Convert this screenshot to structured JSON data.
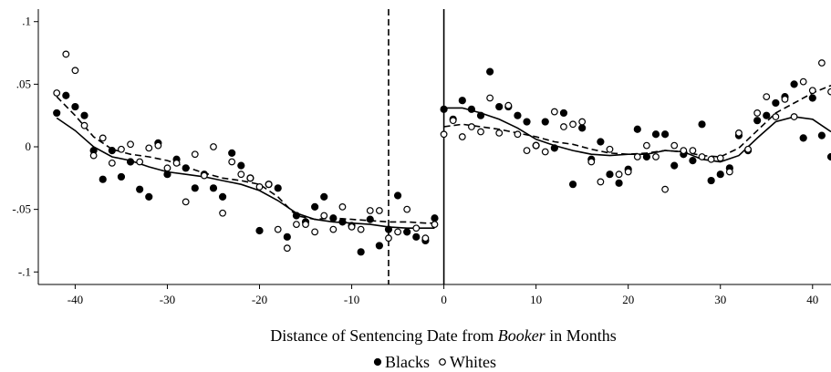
{
  "chart_data": {
    "type": "scatter",
    "x_label": [
      "Distance of Sentencing Date from ",
      "Booker",
      " in Months"
    ],
    "xlim": [
      -44,
      42
    ],
    "xticks": [
      -40,
      -30,
      -20,
      -10,
      0,
      10,
      20,
      30,
      40
    ],
    "ylim": [
      -0.11,
      0.11
    ],
    "yticks": [
      {
        "value": -0.1,
        "label": "-.1"
      },
      {
        "value": -0.05,
        "label": "-.05"
      },
      0,
      {
        "value": 0.05,
        "label": ".05"
      },
      {
        "value": 0.1,
        "label": ".1"
      }
    ],
    "reference_lines": [
      {
        "x": -6,
        "style": "dashed"
      },
      {
        "x": 0,
        "style": "solid"
      }
    ],
    "x": [
      -42,
      -41,
      -40,
      -39,
      -38,
      -37,
      -36,
      -35,
      -34,
      -33,
      -32,
      -31,
      -30,
      -29,
      -28,
      -27,
      -26,
      -25,
      -24,
      -23,
      -22,
      -21,
      -20,
      -19,
      -18,
      -17,
      -16,
      -15,
      -14,
      -13,
      -12,
      -11,
      -10,
      -9,
      -8,
      -7,
      -6,
      -5,
      -4,
      -3,
      -2,
      -1,
      0,
      1,
      2,
      3,
      4,
      5,
      6,
      7,
      8,
      9,
      10,
      11,
      12,
      13,
      14,
      15,
      16,
      17,
      18,
      19,
      20,
      21,
      22,
      23,
      24,
      25,
      26,
      27,
      28,
      29,
      30,
      31,
      32,
      33,
      34,
      35,
      36,
      37,
      38,
      39,
      40,
      41,
      42
    ],
    "fit_x": [
      -42,
      -40,
      -38,
      -36,
      -34,
      -32,
      -30,
      -28,
      -26,
      -24,
      -22,
      -20,
      -18,
      -16,
      -14,
      -12,
      -10,
      -8,
      -6,
      -4,
      -2,
      -1,
      null,
      0,
      2,
      4,
      6,
      8,
      10,
      12,
      14,
      16,
      18,
      20,
      22,
      24,
      26,
      28,
      30,
      32,
      34,
      36,
      38,
      40,
      42
    ],
    "series": [
      {
        "name": "Blacks",
        "marker": "filled",
        "color": "#000000",
        "fit_style": "solid",
        "values": [
          0.027,
          0.041,
          0.032,
          0.025,
          -0.003,
          -0.026,
          -0.003,
          -0.024,
          -0.012,
          -0.034,
          -0.04,
          0.003,
          -0.022,
          -0.01,
          -0.017,
          -0.033,
          -0.022,
          -0.033,
          -0.04,
          -0.005,
          -0.015,
          -0.025,
          -0.067,
          -0.03,
          -0.033,
          -0.072,
          -0.055,
          -0.06,
          -0.048,
          -0.04,
          -0.057,
          -0.06,
          -0.063,
          -0.084,
          -0.058,
          -0.079,
          -0.066,
          -0.039,
          -0.068,
          -0.072,
          -0.075,
          -0.057,
          0.03,
          0.022,
          0.037,
          0.03,
          0.025,
          0.06,
          0.032,
          0.032,
          0.025,
          0.02,
          0.001,
          0.02,
          -0.001,
          0.027,
          -0.03,
          0.015,
          -0.01,
          0.004,
          -0.022,
          -0.029,
          -0.018,
          0.014,
          -0.008,
          0.01,
          0.01,
          -0.015,
          -0.006,
          -0.011,
          0.018,
          -0.027,
          -0.022,
          -0.017,
          0.009,
          -0.003,
          0.021,
          0.025,
          0.035,
          0.04,
          0.05,
          0.007,
          0.039,
          0.009,
          -0.008
        ],
        "fit": [
          0.023,
          0.013,
          0.0,
          -0.008,
          -0.011,
          -0.016,
          -0.02,
          -0.022,
          -0.024,
          -0.027,
          -0.03,
          -0.035,
          -0.043,
          -0.053,
          -0.058,
          -0.06,
          -0.061,
          -0.062,
          -0.064,
          -0.065,
          -0.065,
          -0.065,
          null,
          0.031,
          0.031,
          0.027,
          0.022,
          0.015,
          0.006,
          0.001,
          -0.003,
          -0.006,
          -0.007,
          -0.006,
          -0.006,
          -0.003,
          -0.004,
          -0.01,
          -0.012,
          -0.007,
          0.007,
          0.02,
          0.024,
          0.022,
          0.012
        ]
      },
      {
        "name": "Whites",
        "marker": "hollow",
        "color": "#000000",
        "fit_style": "dashed",
        "values": [
          0.043,
          0.074,
          0.061,
          0.017,
          -0.007,
          0.007,
          -0.013,
          -0.002,
          0.002,
          -0.012,
          -0.001,
          0.001,
          -0.017,
          -0.013,
          -0.044,
          -0.006,
          -0.023,
          0.0,
          -0.053,
          -0.012,
          -0.022,
          -0.025,
          -0.032,
          -0.03,
          -0.066,
          -0.081,
          -0.062,
          -0.062,
          -0.068,
          -0.055,
          -0.066,
          -0.048,
          -0.064,
          -0.066,
          -0.051,
          -0.051,
          -0.073,
          -0.068,
          -0.05,
          -0.065,
          -0.073,
          -0.062,
          0.01,
          0.021,
          0.008,
          0.016,
          0.012,
          0.039,
          0.011,
          0.033,
          0.01,
          -0.003,
          0.001,
          -0.004,
          0.028,
          0.016,
          0.018,
          0.02,
          -0.012,
          -0.028,
          -0.002,
          -0.022,
          -0.02,
          -0.008,
          0.001,
          -0.008,
          -0.034,
          0.001,
          -0.003,
          -0.003,
          -0.008,
          -0.01,
          -0.009,
          -0.02,
          0.011,
          -0.002,
          0.027,
          0.04,
          0.024,
          0.038,
          0.024,
          0.052,
          0.045,
          0.067,
          0.044
        ],
        "fit": [
          0.04,
          0.025,
          0.008,
          -0.002,
          -0.006,
          -0.008,
          -0.011,
          -0.016,
          -0.021,
          -0.025,
          -0.027,
          -0.03,
          -0.04,
          -0.055,
          -0.058,
          -0.057,
          -0.058,
          -0.059,
          -0.06,
          -0.06,
          -0.061,
          -0.061,
          null,
          0.016,
          0.018,
          0.016,
          0.014,
          0.011,
          0.008,
          0.004,
          0.002,
          -0.002,
          -0.005,
          -0.006,
          -0.005,
          -0.003,
          -0.004,
          -0.007,
          -0.008,
          -0.001,
          0.013,
          0.027,
          0.035,
          0.043,
          0.049
        ]
      }
    ]
  }
}
